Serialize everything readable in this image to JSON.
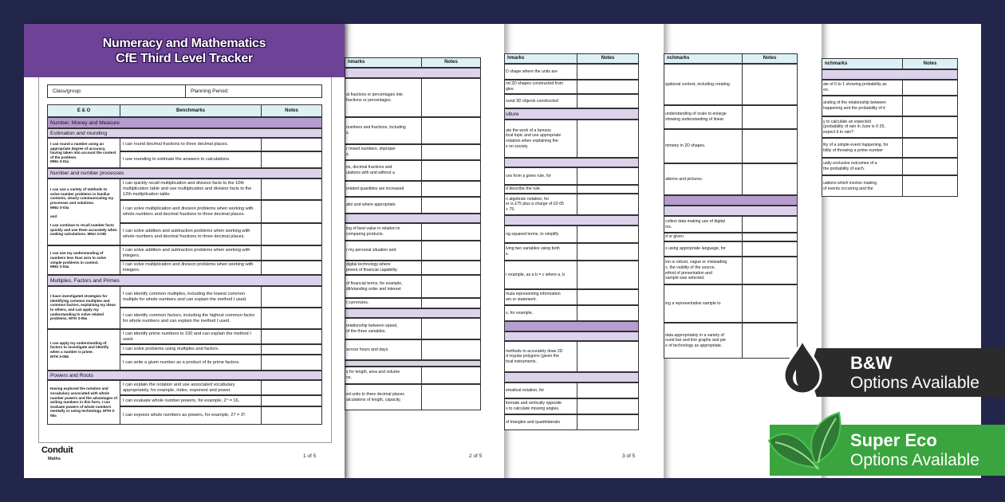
{
  "page1": {
    "title_line1": "Numeracy and Mathematics",
    "title_line2": "CfE Third Level Tracker",
    "class_group_label": "Class/group:",
    "planning_period_label": "Planning Period:",
    "headers": [
      "E & O",
      "Benchmarks",
      "Notes"
    ],
    "rows": [
      {
        "type": "section-dark",
        "text": "Number, Money and Measure"
      },
      {
        "type": "section",
        "text": "Estimation and rounding"
      },
      {
        "type": "group",
        "eo": "I can round a number using an appropriate degree of accuracy, having taken into account the context of the problem.\nMNU 3-01a",
        "benchmarks": [
          "I can round decimal fractions to three decimal places.",
          "I use rounding to estimate the answers to calculations."
        ]
      },
      {
        "type": "section",
        "text": "Number and number processes"
      },
      {
        "type": "group",
        "eo": "I can use a variety of methods to solve number problems in familiar contexts, clearly communicating my processes and solutions.\nMNU 3-03a\n\nand\n\nI can continue to recall number facts quickly and use them accurately when making calculations. MNU 3-03b",
        "benchmarks": [
          "I can quickly recall multiplication and division facts to the 10th multiplication table and use multiplication and division facts to the 12th multiplication table.",
          "I can solve multiplication and division problems when working with whole numbers and decimal fractions to three decimal places.",
          "I can solve addition and subtraction problems when working with whole numbers and decimal fractions to three decimal places."
        ]
      },
      {
        "type": "group",
        "eo": "I can use my understanding of numbers less than zero to solve simple problems in context.\nMNU 3-04a",
        "benchmarks": [
          "I can solve addition and subtraction problems when working with integers.",
          "I can solve multiplication and division problems when working with integers."
        ]
      },
      {
        "type": "section",
        "text": "Multiples, Factors and Primes"
      },
      {
        "type": "group",
        "eo": "I have investigated strategies for identifying common multiples and common factors, explaining my ideas to others, and can apply my understanding to solve related problems. MTH 3-05a",
        "benchmarks": [
          "I can identify common multiples, including the lowest common multiple for whole numbers and can explain the method I used.",
          "I can identify common factors, including the highest common factor for whole numbers and can explain the method I used."
        ]
      },
      {
        "type": "group",
        "eo": "I can apply my understanding of factors to investigate and identify when a number is prime.\nMTH 3-05b",
        "benchmarks": [
          "I can identify prime numbers to 100 and can explain the method I used.",
          "I can solve problems using multiples and factors.",
          "I can write a given number as a product of its prime factors."
        ]
      },
      {
        "type": "section",
        "text": "Powers and Roots"
      },
      {
        "type": "group",
        "eo": "Having explored the notation and vocabulary associated with whole number powers and the advantages of writing numbers in this form, I can evaluate powers of whole numbers mentally or using technology. MTH 3-06a",
        "benchmarks": [
          "I can explain the notation and use associated vocabulary appropriately, for example, index, exponent and power.",
          "I can evaluate whole number powers, for example, 2⁴ = 16.",
          "I can express whole numbers as powers, for example,\n27 = 3³."
        ]
      }
    ],
    "logo_name": "Conduit",
    "logo_sub": "Maths",
    "page_number": "1 of 5"
  },
  "back_pages": [
    {
      "benchmarks_header": "hmarks",
      "notes_header": "Notes",
      "page_number": "2 of 5",
      "rows": [
        {
          "type": "section",
          "text": ""
        },
        {
          "type": "row",
          "text": "al fractions or percentages into\nfractions or percentages."
        },
        {
          "type": "row",
          "text": "numbers and fractions, including\ns."
        },
        {
          "type": "row",
          "text": "r mixed numbers, improper\ns."
        },
        {
          "type": "row",
          "text": "ns, decimal fractions and\nulations with and without a"
        },
        {
          "type": "row",
          "text": "related quantities are increased"
        },
        {
          "type": "row",
          "text": "atio and where appropriate"
        },
        {
          "type": "section",
          "text": ""
        },
        {
          "type": "row",
          "text": "ing of best value in relation to\ncomparing products."
        },
        {
          "type": "row",
          "text": "r my personal situation and"
        },
        {
          "type": "row",
          "text": "digital technology where\npment of financial capability."
        },
        {
          "type": "row",
          "text": "of financial terms, for example,\ndit/standing order and interest"
        },
        {
          "type": "row",
          "text": "t currencies."
        },
        {
          "type": "section",
          "text": ""
        },
        {
          "type": "row",
          "text": "relationship between speed,\nof the three variables."
        },
        {
          "type": "row",
          "text": "across hours and days."
        },
        {
          "type": "section",
          "text": ""
        },
        {
          "type": "row",
          "text": "s for length, area and volume\nns."
        },
        {
          "type": "row",
          "text": "ed units to three decimal places\nalculations of length, capacity,"
        }
      ]
    },
    {
      "benchmarks_header": "hmarks",
      "notes_header": "Notes",
      "page_number": "3 of 5",
      "rows": [
        {
          "type": "row",
          "text": "D shape where the units are"
        },
        {
          "type": "row",
          "text": "nd 2D shapes constructed from\ngles."
        },
        {
          "type": "row",
          "text": "ound 3D objects constructed"
        },
        {
          "type": "section",
          "text": "ulture"
        },
        {
          "type": "row",
          "text": "ate the work of a famous\ntical topic and use appropriate\nnotation when explaining the\ns on society."
        },
        {
          "type": "section",
          "text": ""
        },
        {
          "type": "row",
          "text": "ces from a given rule, for"
        },
        {
          "type": "row",
          "text": "d describe the rule."
        },
        {
          "type": "row",
          "text": "n algebraic notation, for\ner is £75 plus a charge of £0·05\n+ 75."
        },
        {
          "type": "section",
          "text": ""
        },
        {
          "type": "row",
          "text": "ng squared terms, to simplify"
        },
        {
          "type": "row",
          "text": "lving two variables using both\ns."
        },
        {
          "type": "row",
          "text": "r example, as a b = c where a, b"
        },
        {
          "type": "row",
          "text": "mula representing information\nam or statement."
        },
        {
          "type": "row",
          "text": "s, for example,"
        },
        {
          "type": "section-dark",
          "text": ""
        },
        {
          "type": "section",
          "text": ""
        },
        {
          "type": "row",
          "text": "methods to accurately draw 2D\nd regular polygons (given the\ntical instruments."
        },
        {
          "type": "section",
          "text": ""
        },
        {
          "type": "row",
          "text": "ematical notation, for"
        },
        {
          "type": "row",
          "text": "lternate and vertically opposite\ns to calculate missing angles."
        },
        {
          "type": "row",
          "text": "of triangles and quadrilaterals"
        }
      ]
    },
    {
      "benchmarks_header": "nchmarks",
      "notes_header": "Notes",
      "page_number": "",
      "rows": [
        {
          "type": "row",
          "text": "igational context, including creating"
        },
        {
          "type": "row",
          "text": "understanding of scale to enlarge\nshowing understanding of linear"
        },
        {
          "type": "row",
          "text": "mmetry in 2D shapes."
        },
        {
          "type": "row",
          "text": "atterns and pictures."
        },
        {
          "type": "section-dark",
          "text": ""
        },
        {
          "type": "section",
          "text": ""
        },
        {
          "type": "row",
          "text": "collect data making use of digital\nms."
        },
        {
          "type": "row",
          "text": "d or given."
        },
        {
          "type": "row",
          "text": "s using appropriate language, for"
        },
        {
          "type": "row",
          "text": "ion is robust, vague or misleading\ns, the validity of the source,\nethod of presentation and\nsample was selected."
        },
        {
          "type": "row",
          "text": "ing a representative sample to"
        },
        {
          "type": "row",
          "text": "data appropriately in a variety of\nound bar and line graphs and pie\ne of technology as appropriate."
        }
      ]
    },
    {
      "benchmarks_header": "nchmarks",
      "notes_header": "Notes",
      "page_number": "",
      "rows": [
        {
          "type": "section",
          "text": ""
        },
        {
          "type": "row",
          "text": "ale of 0 to 1 showing probability as\non."
        },
        {
          "type": "row",
          "text": "anding of the relationship between\nhappening and the probability of it"
        },
        {
          "type": "row",
          "text": "y to calculate an expected\n(probability of rain in June is 0·25,\nexpect it to rain?"
        },
        {
          "type": "row",
          "text": "lity of a simple event happening, for\nbility of throwing a prime number"
        },
        {
          "type": "row",
          "text": "ually exclusive outcomes of a\nthe probability of each."
        },
        {
          "type": "row",
          "text": "uations which involve making\nof events occurring and the"
        }
      ]
    }
  ],
  "badges": {
    "bw": {
      "title": "B&W",
      "subtitle": "Options Available",
      "icon": "ink-drop-icon",
      "color": "#2b2b2b"
    },
    "eco": {
      "title": "Super Eco",
      "subtitle": "Options Available",
      "icon": "leaves-icon",
      "color": "#3aa43e"
    }
  },
  "colors": {
    "background": "#21264a",
    "header_purple": "#6d4297",
    "section_dark": "#b79ccf",
    "section_light": "#ddd2ec",
    "table_header": "#dcf0f6"
  }
}
